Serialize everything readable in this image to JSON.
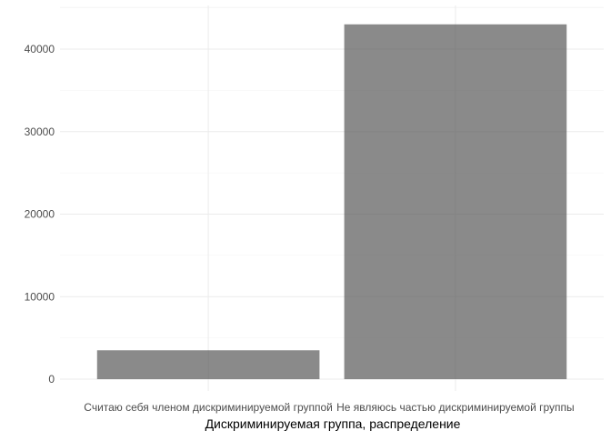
{
  "chart_data": {
    "type": "bar",
    "title": "",
    "xlabel": "Дискриминируемая группа, распределение",
    "ylabel": "",
    "categories": [
      "Считаю себя членом дискриминируемой группой",
      "Не являюсь частью дискриминируемой группы"
    ],
    "values": [
      3500,
      43000
    ],
    "ylim": [
      0,
      45000
    ],
    "yticks": [
      0,
      10000,
      20000,
      30000,
      40000
    ],
    "grid": true,
    "legend": "none",
    "colors": {
      "bar": "#595959"
    }
  }
}
